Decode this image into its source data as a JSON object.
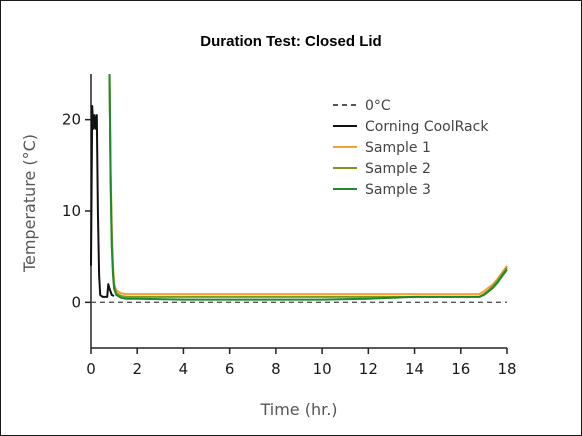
{
  "chart_data": {
    "type": "line",
    "title": "Duration Test: Closed Lid",
    "xlabel": "Time (hr.)",
    "ylabel": "Temperature (°C)",
    "xlim": [
      0,
      18
    ],
    "ylim": [
      -5,
      25
    ],
    "xticks": [
      0,
      2,
      4,
      6,
      8,
      10,
      12,
      14,
      16,
      18
    ],
    "yticks": [
      0,
      10,
      20
    ],
    "legend_position": "top-right",
    "grid": false,
    "series": [
      {
        "name": "0°C",
        "color": "#555555",
        "dashed": true,
        "x": [
          0,
          18
        ],
        "y": [
          0,
          0
        ]
      },
      {
        "name": "Corning CoolRack",
        "color": "#111111",
        "dashed": false,
        "x": [
          0.0,
          0.05,
          0.1,
          0.15,
          0.2,
          0.25,
          0.3,
          0.35,
          0.4,
          0.5,
          0.6,
          0.7,
          0.75,
          0.8,
          0.9,
          1.0
        ],
        "y": [
          4,
          21.5,
          19,
          20.5,
          19,
          20.5,
          10,
          3,
          0.8,
          0.6,
          0.6,
          0.6,
          2,
          1.5,
          0.8,
          0.7
        ]
      },
      {
        "name": "Sample 1",
        "color": "#F5A033",
        "dashed": false,
        "x": [
          0.8,
          0.85,
          0.9,
          0.95,
          1.0,
          1.1,
          1.3,
          1.5,
          2,
          4,
          6,
          8,
          10,
          12,
          14,
          16,
          16.8,
          17.0,
          17.2,
          17.4,
          17.6,
          17.8,
          18.0
        ],
        "y": [
          25,
          15,
          8,
          4,
          2,
          1.3,
          1.0,
          0.9,
          0.9,
          0.9,
          0.9,
          0.9,
          0.9,
          0.9,
          0.9,
          0.9,
          0.9,
          1.2,
          1.6,
          2.0,
          2.6,
          3.3,
          4.0
        ]
      },
      {
        "name": "Sample 2",
        "color": "#7E9A1E",
        "dashed": false,
        "x": [
          0.8,
          0.85,
          0.9,
          0.95,
          1.0,
          1.1,
          1.3,
          1.5,
          2,
          4,
          6,
          8,
          10,
          12,
          14,
          16,
          16.8,
          17.0,
          17.2,
          17.4,
          17.6,
          17.8,
          18.0
        ],
        "y": [
          25,
          14,
          7,
          3.5,
          1.8,
          1.0,
          0.7,
          0.6,
          0.6,
          0.6,
          0.6,
          0.6,
          0.6,
          0.6,
          0.6,
          0.6,
          0.6,
          0.9,
          1.3,
          1.8,
          2.4,
          3.1,
          3.8
        ]
      },
      {
        "name": "Sample 3",
        "color": "#1E8A2C",
        "dashed": false,
        "x": [
          0.8,
          0.85,
          0.9,
          0.95,
          1.0,
          1.1,
          1.3,
          1.5,
          2,
          4,
          6,
          8,
          10,
          12,
          14,
          16,
          16.8,
          17.0,
          17.2,
          17.4,
          17.6,
          17.8,
          18.0
        ],
        "y": [
          25,
          13,
          6,
          3,
          1.5,
          0.8,
          0.5,
          0.4,
          0.4,
          0.3,
          0.3,
          0.3,
          0.3,
          0.4,
          0.6,
          0.6,
          0.6,
          0.8,
          1.2,
          1.6,
          2.2,
          2.9,
          3.6
        ]
      }
    ]
  }
}
